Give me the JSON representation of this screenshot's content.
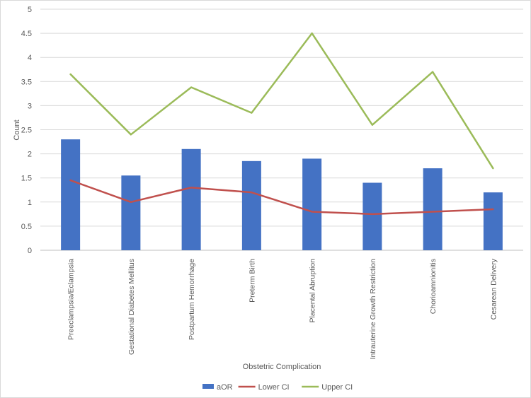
{
  "chart_data": {
    "type": "bar",
    "title": "",
    "xlabel": "Obstetric Complication",
    "ylabel": "Count",
    "ylim": [
      0,
      5
    ],
    "ytick_step": 0.5,
    "yticks": [
      "0",
      "0.5",
      "1",
      "1.5",
      "2",
      "2.5",
      "3",
      "3.5",
      "4",
      "4.5",
      "5"
    ],
    "grid": true,
    "legend_position": "bottom",
    "categories": [
      "Preeclampsia/Eclampsia",
      "Gestational Diabetes Mellitus",
      "Postpartum Hemorrhage",
      "Preterm Birth",
      "Placental Abruption",
      "Intrauterine Growth Restriction",
      "Chorioamnionitis",
      "Cesarean Delivery"
    ],
    "series": [
      {
        "name": "aOR",
        "kind": "bar",
        "color": "#4472c4",
        "values": [
          2.3,
          1.55,
          2.1,
          1.85,
          1.9,
          1.4,
          1.7,
          1.2
        ]
      },
      {
        "name": "Lower CI",
        "kind": "line",
        "color": "#c0504d",
        "values": [
          1.45,
          1.0,
          1.3,
          1.2,
          0.8,
          0.75,
          0.8,
          0.85
        ]
      },
      {
        "name": "Upper CI",
        "kind": "line",
        "color": "#9bbb59",
        "values": [
          3.65,
          2.4,
          3.38,
          2.85,
          4.5,
          2.6,
          3.7,
          1.7
        ]
      }
    ]
  }
}
